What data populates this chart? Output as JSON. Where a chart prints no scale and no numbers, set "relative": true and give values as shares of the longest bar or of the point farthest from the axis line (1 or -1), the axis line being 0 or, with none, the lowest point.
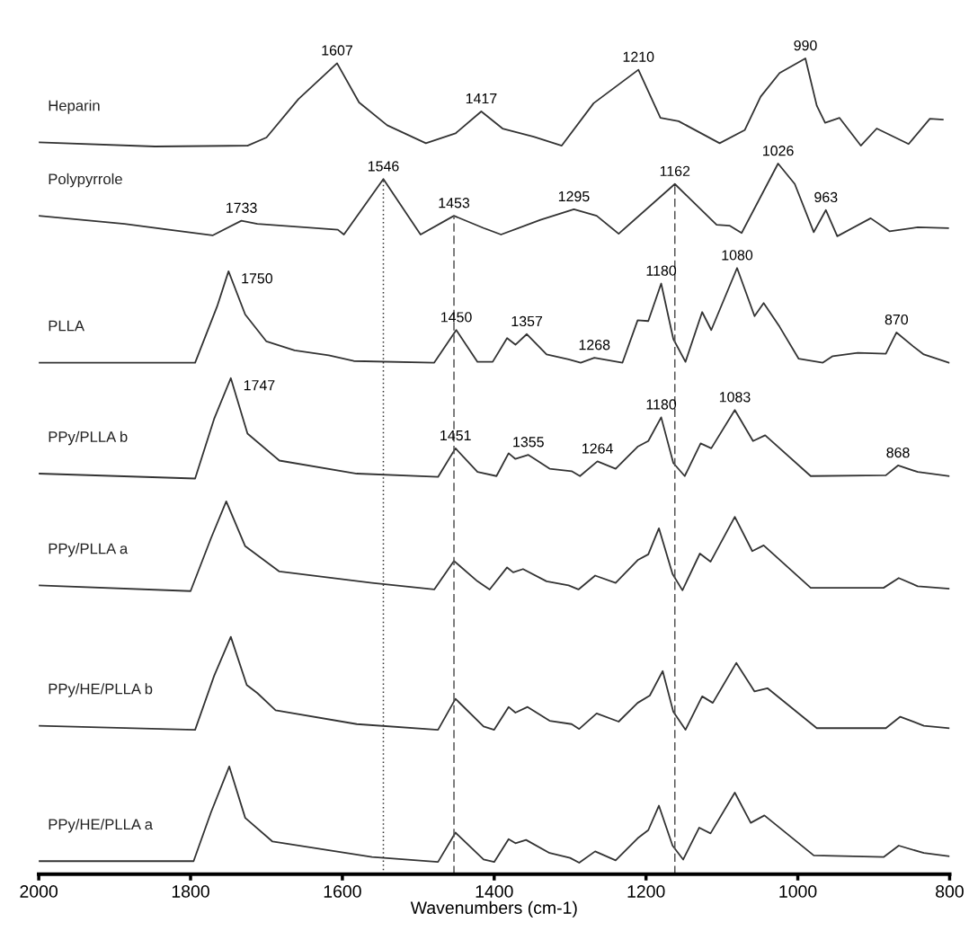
{
  "chart_data": {
    "type": "line",
    "relative": true,
    "xlabel": "Wavenumbers (cm-1)",
    "xlim": [
      2000,
      800
    ],
    "xticks": [
      2000,
      1800,
      1600,
      1400,
      1200,
      1000,
      800
    ],
    "tick_labels": "x",
    "grid": false,
    "legend": false,
    "marker": "none",
    "line_style": "solid",
    "series": [
      {
        "name": "Heparin",
        "color": "#333333",
        "x": [
          2000,
          1847,
          1725,
          1700,
          1658,
          1607,
          1578,
          1541,
          1490,
          1451,
          1417,
          1389,
          1348,
          1311,
          1269,
          1210,
          1181,
          1157,
          1103,
          1070,
          1049,
          1024,
          990,
          975,
          964,
          945,
          917,
          896,
          854,
          826,
          809
        ],
        "values": [
          0.897,
          0.892,
          0.893,
          0.903,
          0.95,
          0.994,
          0.946,
          0.918,
          0.896,
          0.908,
          0.935,
          0.914,
          0.904,
          0.893,
          0.945,
          0.986,
          0.927,
          0.923,
          0.896,
          0.912,
          0.953,
          0.982,
          1.0,
          0.942,
          0.921,
          0.927,
          0.893,
          0.914,
          0.895,
          0.926,
          0.925
        ]
      },
      {
        "name": "Polypyrrole",
        "color": "#333333",
        "x": [
          2000,
          1887,
          1771,
          1733,
          1712,
          1606,
          1598,
          1546,
          1497,
          1453,
          1414,
          1391,
          1339,
          1295,
          1265,
          1236,
          1162,
          1107,
          1090,
          1074,
          1026,
          1004,
          979,
          963,
          948,
          904,
          879,
          842,
          802
        ],
        "values": [
          0.807,
          0.797,
          0.783,
          0.801,
          0.797,
          0.79,
          0.784,
          0.852,
          0.784,
          0.807,
          0.792,
          0.784,
          0.802,
          0.815,
          0.807,
          0.785,
          0.846,
          0.796,
          0.795,
          0.786,
          0.871,
          0.846,
          0.787,
          0.814,
          0.782,
          0.804,
          0.788,
          0.793,
          0.792
        ]
      },
      {
        "name": "PLLA",
        "color": "#333333",
        "x": [
          2000,
          1794,
          1765,
          1750,
          1728,
          1700,
          1663,
          1618,
          1585,
          1479,
          1450,
          1422,
          1402,
          1383,
          1372,
          1357,
          1331,
          1302,
          1286,
          1268,
          1231,
          1211,
          1197,
          1180,
          1164,
          1148,
          1126,
          1114,
          1080,
          1057,
          1045,
          1024,
          999,
          967,
          954,
          921,
          884,
          870,
          848,
          834,
          801
        ],
        "values": [
          0.627,
          0.627,
          0.696,
          0.739,
          0.686,
          0.653,
          0.642,
          0.636,
          0.629,
          0.627,
          0.667,
          0.628,
          0.628,
          0.657,
          0.649,
          0.662,
          0.637,
          0.631,
          0.627,
          0.633,
          0.627,
          0.679,
          0.678,
          0.724,
          0.656,
          0.628,
          0.689,
          0.667,
          0.743,
          0.684,
          0.7,
          0.671,
          0.632,
          0.627,
          0.635,
          0.639,
          0.638,
          0.664,
          0.647,
          0.637,
          0.627
        ]
      },
      {
        "name": "PPy/PLLA b",
        "color": "#333333",
        "x": [
          2000,
          1794,
          1769,
          1747,
          1725,
          1683,
          1581,
          1474,
          1451,
          1422,
          1397,
          1381,
          1372,
          1355,
          1327,
          1298,
          1287,
          1264,
          1240,
          1211,
          1197,
          1180,
          1164,
          1149,
          1128,
          1114,
          1083,
          1059,
          1043,
          983,
          884,
          868,
          842,
          801
        ],
        "values": [
          0.491,
          0.485,
          0.558,
          0.608,
          0.54,
          0.507,
          0.491,
          0.487,
          0.522,
          0.493,
          0.488,
          0.516,
          0.509,
          0.514,
          0.497,
          0.494,
          0.488,
          0.506,
          0.497,
          0.524,
          0.531,
          0.56,
          0.504,
          0.488,
          0.528,
          0.522,
          0.569,
          0.531,
          0.538,
          0.488,
          0.489,
          0.501,
          0.493,
          0.488
        ]
      },
      {
        "name": "PPy/PLLA a",
        "color": "#333333",
        "x": [
          2000,
          1800,
          1773,
          1753,
          1728,
          1683,
          1561,
          1479,
          1453,
          1422,
          1406,
          1383,
          1375,
          1362,
          1331,
          1302,
          1289,
          1267,
          1240,
          1211,
          1197,
          1183,
          1165,
          1152,
          1129,
          1115,
          1083,
          1060,
          1045,
          983,
          887,
          867,
          842,
          801
        ],
        "values": [
          0.354,
          0.347,
          0.412,
          0.457,
          0.402,
          0.371,
          0.357,
          0.349,
          0.384,
          0.359,
          0.349,
          0.376,
          0.37,
          0.374,
          0.359,
          0.354,
          0.349,
          0.366,
          0.357,
          0.385,
          0.392,
          0.424,
          0.368,
          0.348,
          0.393,
          0.383,
          0.438,
          0.396,
          0.403,
          0.351,
          0.351,
          0.363,
          0.353,
          0.35
        ]
      },
      {
        "name": "PPy/HE/PLLA b",
        "color": "#333333",
        "x": [
          2000,
          1794,
          1769,
          1747,
          1726,
          1712,
          1688,
          1581,
          1474,
          1451,
          1414,
          1400,
          1381,
          1372,
          1356,
          1327,
          1298,
          1288,
          1265,
          1236,
          1211,
          1195,
          1178,
          1164,
          1148,
          1126,
          1112,
          1081,
          1057,
          1040,
          975,
          884,
          865,
          834,
          801
        ],
        "values": [
          0.182,
          0.177,
          0.243,
          0.291,
          0.232,
          0.222,
          0.201,
          0.184,
          0.177,
          0.215,
          0.181,
          0.177,
          0.205,
          0.198,
          0.205,
          0.188,
          0.184,
          0.178,
          0.197,
          0.187,
          0.21,
          0.219,
          0.249,
          0.199,
          0.177,
          0.218,
          0.21,
          0.259,
          0.224,
          0.228,
          0.179,
          0.179,
          0.193,
          0.182,
          0.179
        ]
      },
      {
        "name": "PPy/HE/PLLA a",
        "color": "#333333",
        "x": [
          2000,
          1796,
          1773,
          1749,
          1728,
          1692,
          1561,
          1474,
          1451,
          1414,
          1400,
          1381,
          1372,
          1358,
          1327,
          1300,
          1288,
          1267,
          1240,
          1211,
          1197,
          1183,
          1165,
          1151,
          1130,
          1115,
          1083,
          1062,
          1044,
          979,
          887,
          867,
          834,
          801
        ],
        "values": [
          0.016,
          0.016,
          0.076,
          0.132,
          0.069,
          0.04,
          0.021,
          0.015,
          0.051,
          0.018,
          0.015,
          0.043,
          0.038,
          0.042,
          0.026,
          0.02,
          0.014,
          0.028,
          0.017,
          0.044,
          0.054,
          0.084,
          0.035,
          0.018,
          0.057,
          0.05,
          0.1,
          0.063,
          0.072,
          0.023,
          0.021,
          0.035,
          0.026,
          0.022
        ]
      }
    ],
    "ref_lines": [
      {
        "axis": "x",
        "value": 1546,
        "line_style": "dotted",
        "color": "#333333"
      },
      {
        "axis": "x",
        "value": 1453,
        "line_style": "dashed",
        "color": "#555555"
      },
      {
        "axis": "x",
        "value": 1162,
        "line_style": "dashed",
        "color": "#555555"
      }
    ],
    "annotations": [
      {
        "text": "1607",
        "x": 1607,
        "y": 0.994
      },
      {
        "text": "1417",
        "x": 1417,
        "y": 0.935
      },
      {
        "text": "1210",
        "x": 1210,
        "y": 0.986
      },
      {
        "text": "990",
        "x": 990,
        "y": 1.0
      },
      {
        "text": "1733",
        "x": 1733,
        "y": 0.801
      },
      {
        "text": "1546",
        "x": 1546,
        "y": 0.852
      },
      {
        "text": "1453",
        "x": 1453,
        "y": 0.807
      },
      {
        "text": "1295",
        "x": 1295,
        "y": 0.815
      },
      {
        "text": "1162",
        "x": 1162,
        "y": 0.846
      },
      {
        "text": "1026",
        "x": 1026,
        "y": 0.871
      },
      {
        "text": "963",
        "x": 963,
        "y": 0.814
      },
      {
        "text": "1750",
        "x": 1750,
        "y": 0.739
      },
      {
        "text": "1450",
        "x": 1450,
        "y": 0.667
      },
      {
        "text": "1357",
        "x": 1357,
        "y": 0.662
      },
      {
        "text": "1268",
        "x": 1268,
        "y": 0.633
      },
      {
        "text": "1180",
        "x": 1180,
        "y": 0.724
      },
      {
        "text": "1080",
        "x": 1080,
        "y": 0.743
      },
      {
        "text": "870",
        "x": 870,
        "y": 0.664
      },
      {
        "text": "1747",
        "x": 1747,
        "y": 0.608
      },
      {
        "text": "1451",
        "x": 1451,
        "y": 0.522
      },
      {
        "text": "1355",
        "x": 1355,
        "y": 0.514
      },
      {
        "text": "1264",
        "x": 1264,
        "y": 0.506
      },
      {
        "text": "1180",
        "x": 1180,
        "y": 0.56
      },
      {
        "text": "1083",
        "x": 1083,
        "y": 0.569
      },
      {
        "text": "868",
        "x": 868,
        "y": 0.501
      }
    ]
  }
}
